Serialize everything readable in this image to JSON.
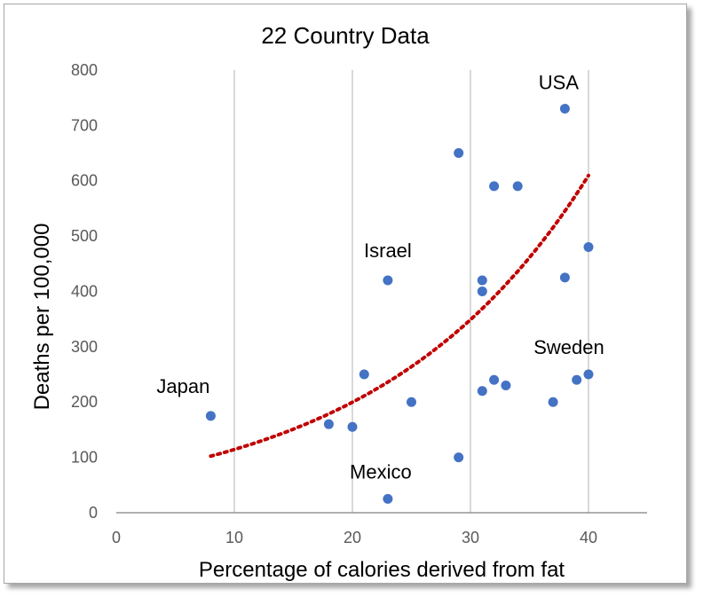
{
  "chart_data": {
    "type": "scatter",
    "title": "22 Country Data",
    "xlabel": "Percentage of calories derived from fat",
    "ylabel": "Deaths per 100,000",
    "xlim": [
      0,
      45
    ],
    "ylim": [
      0,
      800
    ],
    "x_ticks": [
      0,
      10,
      20,
      30,
      40
    ],
    "y_ticks": [
      0,
      100,
      200,
      300,
      400,
      500,
      600,
      700,
      800
    ],
    "grid": "vertical",
    "legend": "none",
    "colors": {
      "points": "#4472c4",
      "trendline": "#c00000",
      "grid": "#d9d9d9",
      "axis": "#808080"
    },
    "series": [
      {
        "points": [
          {
            "x": 8,
            "y": 175
          },
          {
            "x": 18,
            "y": 160
          },
          {
            "x": 20,
            "y": 155
          },
          {
            "x": 21,
            "y": 250
          },
          {
            "x": 23,
            "y": 420
          },
          {
            "x": 23,
            "y": 25
          },
          {
            "x": 25,
            "y": 200
          },
          {
            "x": 29,
            "y": 650
          },
          {
            "x": 29,
            "y": 100
          },
          {
            "x": 31,
            "y": 420
          },
          {
            "x": 31,
            "y": 400
          },
          {
            "x": 31,
            "y": 220
          },
          {
            "x": 32,
            "y": 590
          },
          {
            "x": 32,
            "y": 240
          },
          {
            "x": 33,
            "y": 230
          },
          {
            "x": 34,
            "y": 590
          },
          {
            "x": 37,
            "y": 200
          },
          {
            "x": 38,
            "y": 730
          },
          {
            "x": 38,
            "y": 425
          },
          {
            "x": 39,
            "y": 240
          },
          {
            "x": 40,
            "y": 480
          },
          {
            "x": 40,
            "y": 250
          }
        ]
      }
    ],
    "trendline": {
      "type": "exponential",
      "style": "dotted",
      "x_range": [
        8,
        40
      ],
      "a": 65.4,
      "b": 0.0558
    },
    "annotations": [
      {
        "text": "USA",
        "x": 38,
        "y": 730
      },
      {
        "text": "Israel",
        "x": 23,
        "y": 420
      },
      {
        "text": "Japan",
        "x": 8,
        "y": 175
      },
      {
        "text": "Sweden",
        "x": 40,
        "y": 250
      },
      {
        "text": "Mexico",
        "x": 23,
        "y": 25
      }
    ]
  }
}
